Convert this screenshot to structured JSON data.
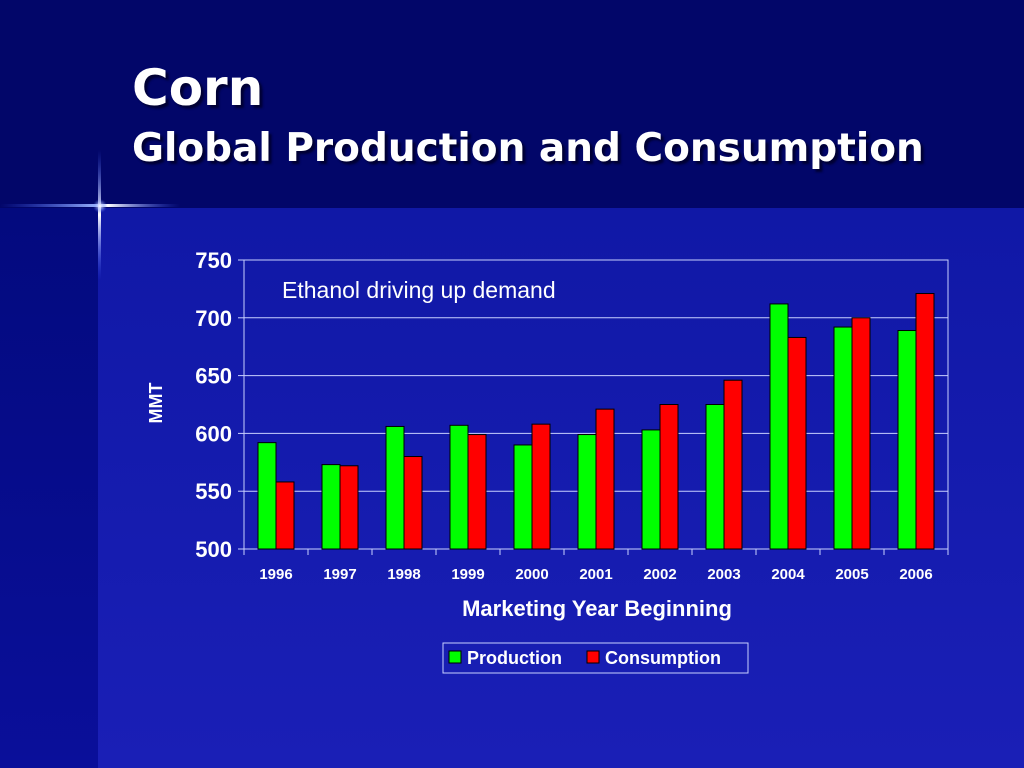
{
  "slide": {
    "title": "Corn",
    "subtitle": "Global Production and Consumption"
  },
  "chart_data": {
    "type": "bar",
    "categories": [
      "1996",
      "1997",
      "1998",
      "1999",
      "2000",
      "2001",
      "2002",
      "2003",
      "2004",
      "2005",
      "2006"
    ],
    "series": [
      {
        "name": "Production",
        "color": "#00ff00",
        "values": [
          592,
          573,
          606,
          607,
          590,
          599,
          603,
          625,
          712,
          692,
          689
        ]
      },
      {
        "name": "Consumption",
        "color": "#ff0000",
        "values": [
          558,
          572,
          580,
          599,
          608,
          621,
          625,
          646,
          683,
          700,
          721
        ]
      }
    ],
    "ylabel": "MMT",
    "xlabel": "Marketing Year Beginning",
    "ylim": [
      500,
      750
    ],
    "yticks": [
      500,
      550,
      600,
      650,
      700,
      750
    ],
    "annotation": "Ethanol driving up demand",
    "grid": true,
    "legend_position": "bottom"
  }
}
